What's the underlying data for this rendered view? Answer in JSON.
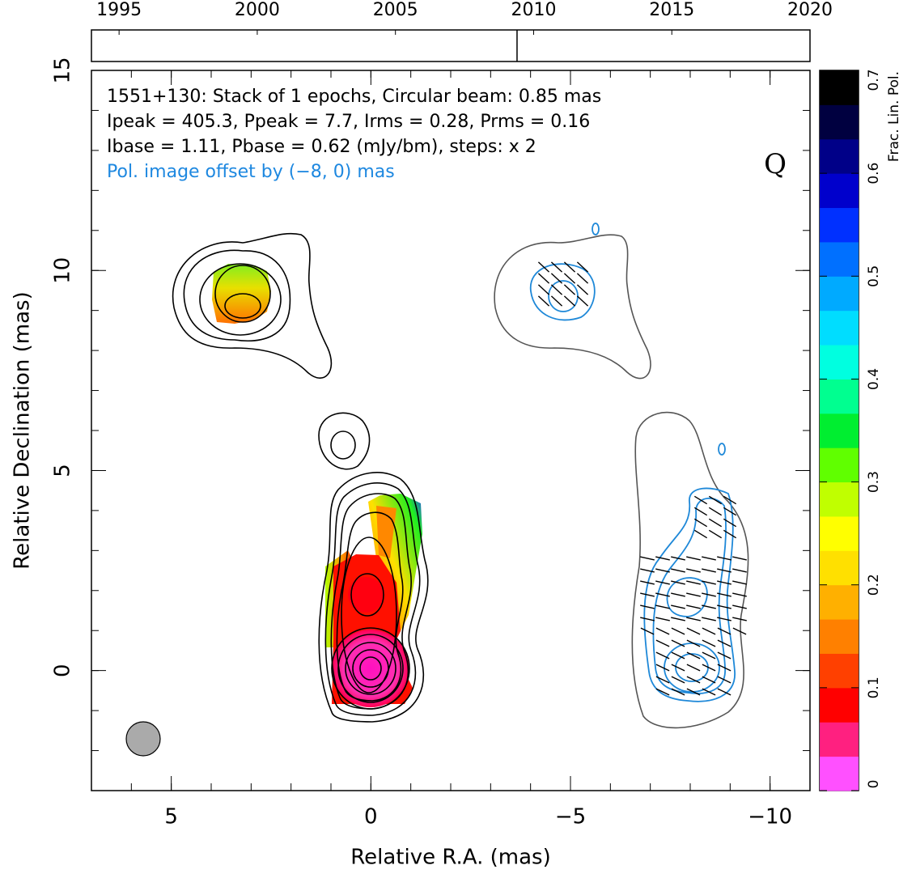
{
  "chart_data": {
    "type": "image",
    "annotations": [
      {
        "text": "1551+130: Stack of 1 epochs, Circular beam: 0.85 mas",
        "color": "#000000"
      },
      {
        "text": "Ipeak = 405.3, Ppeak = 7.7, Irms = 0.28, Prms = 0.16",
        "color": "#000000"
      },
      {
        "text": "Ibase = 1.11, Pbase = 0.62 (mJy/bm), steps: x 2",
        "color": "#000000"
      },
      {
        "text": "Pol. image offset by (−8, 0) mas",
        "color": "#1e88e0"
      }
    ],
    "stokes_label": "Q",
    "xlabel": "Relative R.A. (mas)",
    "ylabel": "Relative Declination (mas)",
    "xlim": [
      7,
      -11
    ],
    "ylim": [
      -3,
      15
    ],
    "xticks": [
      5,
      0,
      {
        "value": -5,
        "label": "−5"
      },
      {
        "value": -10,
        "label": "−10"
      }
    ],
    "yticks": [
      0,
      5,
      10,
      15
    ],
    "colorbar": {
      "label": "Frac. Lin. Pol.",
      "lim": [
        0,
        0.7
      ],
      "ticks": [
        0,
        0.1,
        0.2,
        0.3,
        0.4,
        0.5,
        0.6,
        0.7
      ],
      "colors": [
        "#ff50ff",
        "#ff2080",
        "#ff0000",
        "#ff4000",
        "#ff8000",
        "#ffb000",
        "#ffe000",
        "#ffff00",
        "#c0ff00",
        "#60ff00",
        "#00ee30",
        "#00ff90",
        "#00ffe0",
        "#00ddff",
        "#00aaff",
        "#0070ff",
        "#0030ff",
        "#0000cc",
        "#000088",
        "#000040",
        "#000000"
      ]
    },
    "timeline": {
      "xlim": [
        1994,
        2020
      ],
      "xticks": [
        1995,
        2000,
        2005,
        2010,
        2015,
        2020
      ],
      "epochs": [
        2009.4
      ]
    }
  }
}
